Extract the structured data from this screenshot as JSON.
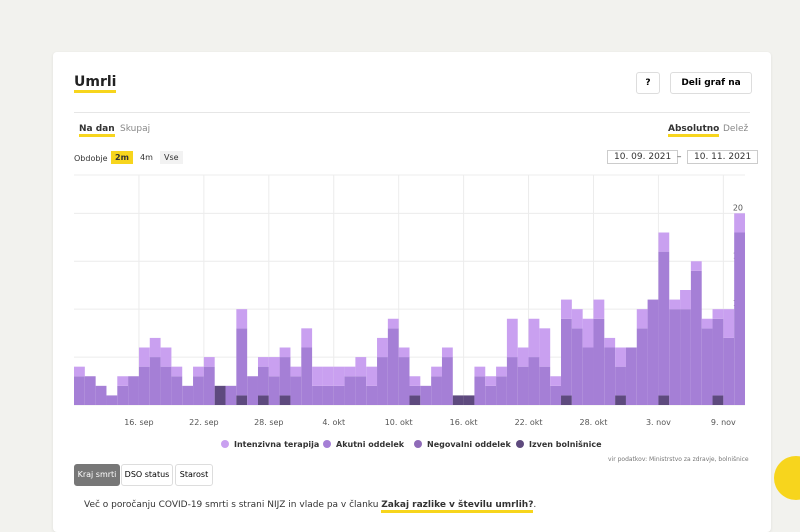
{
  "header": {
    "title": "Umrli",
    "help": "?",
    "share": "Deli graf na"
  },
  "tabs": {
    "mode": [
      "Na dan",
      "Skupaj"
    ],
    "scale": [
      "Absolutno",
      "Delež"
    ]
  },
  "period": {
    "label": "Obdobje",
    "options": [
      "2m",
      "4m",
      "Vse"
    ],
    "from": "10. 09. 2021",
    "separator": "–",
    "to": "10. 11. 2021"
  },
  "chart_data": {
    "type": "stacked-bar",
    "categories": [
      null,
      null,
      null,
      null,
      null,
      null,
      "16. sep",
      null,
      null,
      null,
      null,
      null,
      "22. sep",
      null,
      null,
      null,
      null,
      null,
      "28. sep",
      null,
      null,
      null,
      null,
      null,
      "4. okt",
      null,
      null,
      null,
      null,
      null,
      "10. okt",
      null,
      null,
      null,
      null,
      null,
      "16. okt",
      null,
      null,
      null,
      null,
      null,
      "22. okt",
      null,
      null,
      null,
      null,
      null,
      "28. okt",
      null,
      null,
      null,
      null,
      null,
      "3. nov",
      null,
      null,
      null,
      null,
      null,
      "9. nov",
      null
    ],
    "series": [
      {
        "name": "Izven bolnišnice",
        "color": "#5e4a7e",
        "values": [
          0,
          0,
          0,
          0,
          0,
          0,
          0,
          0,
          0,
          0,
          0,
          0,
          0,
          2,
          0,
          1,
          0,
          1,
          0,
          1,
          0,
          0,
          0,
          0,
          0,
          0,
          0,
          0,
          0,
          0,
          0,
          1,
          0,
          0,
          0,
          1,
          1,
          0,
          0,
          0,
          0,
          0,
          0,
          0,
          0,
          1,
          0,
          0,
          0,
          0,
          1,
          0,
          0,
          0,
          1,
          0,
          0,
          0,
          0,
          1,
          0,
          0
        ]
      },
      {
        "name": "Negovalni oddelek",
        "color": "#8f6bb8",
        "values": [
          0,
          0,
          0,
          0,
          0,
          0,
          0,
          0,
          0,
          0,
          0,
          0,
          0,
          0,
          0,
          0,
          0,
          0,
          0,
          0,
          0,
          0,
          0,
          0,
          0,
          0,
          0,
          0,
          0,
          0,
          0,
          0,
          0,
          0,
          0,
          0,
          0,
          0,
          0,
          0,
          0,
          0,
          0,
          0,
          0,
          0,
          0,
          0,
          0,
          0,
          0,
          0,
          0,
          0,
          0,
          0,
          0,
          0,
          0,
          0,
          0,
          0
        ]
      },
      {
        "name": "Akutni oddelek",
        "color": "#a57fd6",
        "values": [
          3,
          3,
          2,
          1,
          2,
          3,
          4,
          5,
          4,
          3,
          2,
          3,
          4,
          0,
          2,
          7,
          3,
          3,
          3,
          4,
          3,
          6,
          2,
          2,
          2,
          3,
          3,
          2,
          5,
          8,
          5,
          1,
          2,
          3,
          5,
          0,
          0,
          3,
          2,
          3,
          5,
          4,
          5,
          4,
          2,
          8,
          8,
          6,
          9,
          6,
          3,
          6,
          8,
          11,
          15,
          10,
          10,
          14,
          8,
          8,
          7,
          18
        ]
      },
      {
        "name": "Intenzivna terapija",
        "color": "#c9a0f0",
        "values": [
          1,
          0,
          0,
          0,
          1,
          0,
          2,
          2,
          2,
          1,
          0,
          1,
          1,
          0,
          0,
          2,
          0,
          1,
          2,
          1,
          1,
          2,
          2,
          2,
          2,
          1,
          2,
          2,
          2,
          1,
          1,
          1,
          0,
          1,
          1,
          0,
          0,
          1,
          1,
          1,
          4,
          2,
          4,
          4,
          1,
          2,
          2,
          3,
          2,
          1,
          2,
          0,
          2,
          0,
          2,
          1,
          2,
          1,
          1,
          1,
          3,
          2
        ]
      }
    ],
    "ylim": [
      0,
      24
    ],
    "yticks": [
      0,
      5,
      10,
      15,
      20
    ],
    "grid": true,
    "source": "vir podatkov: Ministrstvo za zdravje, bolnišnice"
  },
  "buttons": [
    "Kraj smrti",
    "DSO status",
    "Starost"
  ],
  "footer": {
    "text": "Več o poročanju COVID-19 smrti s strani NIJZ in vlade pa v članku ",
    "link": "Zakaj razlike v številu umrlih?",
    "end": "."
  }
}
